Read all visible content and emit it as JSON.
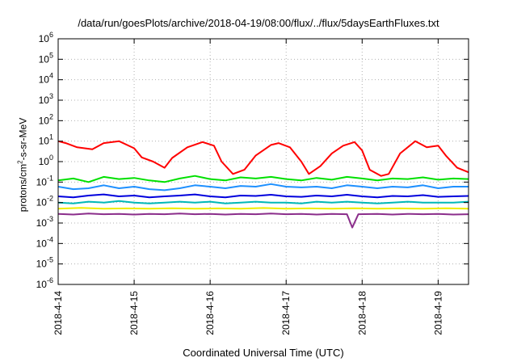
{
  "chart_data": {
    "type": "line",
    "title": "/data/run/goesPlots/archive/2018-04-19/08:00/flux/../flux/5daysEarthFluxes.txt",
    "xlabel": "Coordinated Universal Time (UTC)",
    "ylabel_parts": [
      "protons/cm",
      "2",
      "-s-sr-MeV"
    ],
    "yscale": "log",
    "ylim": [
      1e-06,
      1000000.0
    ],
    "ytick_exponents": [
      -6,
      -5,
      -4,
      -3,
      -2,
      -1,
      0,
      1,
      2,
      3,
      4,
      5,
      6
    ],
    "x_ticks": [
      "2018-4-14",
      "2018-4-15",
      "2018-4-16",
      "2018-4-17",
      "2018-4-18",
      "2018-4-19"
    ],
    "xlim_days": [
      0,
      5.4
    ],
    "grid": true,
    "series": [
      {
        "color": "#ff0000",
        "points": [
          [
            0,
            10
          ],
          [
            0.1,
            8
          ],
          [
            0.25,
            5
          ],
          [
            0.45,
            4
          ],
          [
            0.6,
            8
          ],
          [
            0.8,
            10
          ],
          [
            1,
            4.5
          ],
          [
            1.1,
            1.6
          ],
          [
            1.25,
            1
          ],
          [
            1.4,
            0.5
          ],
          [
            1.5,
            1.5
          ],
          [
            1.7,
            5
          ],
          [
            1.9,
            9
          ],
          [
            2.05,
            6
          ],
          [
            2.15,
            1
          ],
          [
            2.3,
            0.25
          ],
          [
            2.45,
            0.4
          ],
          [
            2.6,
            2
          ],
          [
            2.8,
            6.5
          ],
          [
            2.9,
            8
          ],
          [
            3.05,
            5
          ],
          [
            3.2,
            1
          ],
          [
            3.3,
            0.25
          ],
          [
            3.45,
            0.6
          ],
          [
            3.6,
            2.5
          ],
          [
            3.75,
            6
          ],
          [
            3.9,
            9
          ],
          [
            4.0,
            3.5
          ],
          [
            4.1,
            0.4
          ],
          [
            4.25,
            0.2
          ],
          [
            4.35,
            0.25
          ],
          [
            4.5,
            2.5
          ],
          [
            4.7,
            10
          ],
          [
            4.85,
            5
          ],
          [
            5.0,
            6
          ],
          [
            5.1,
            2
          ],
          [
            5.25,
            0.5
          ],
          [
            5.4,
            0.3
          ]
        ]
      },
      {
        "color": "#00e000",
        "points": [
          [
            0,
            0.12
          ],
          [
            0.2,
            0.15
          ],
          [
            0.4,
            0.1
          ],
          [
            0.6,
            0.18
          ],
          [
            0.8,
            0.14
          ],
          [
            1,
            0.16
          ],
          [
            1.2,
            0.12
          ],
          [
            1.4,
            0.1
          ],
          [
            1.6,
            0.15
          ],
          [
            1.8,
            0.2
          ],
          [
            2,
            0.14
          ],
          [
            2.2,
            0.12
          ],
          [
            2.4,
            0.17
          ],
          [
            2.6,
            0.15
          ],
          [
            2.8,
            0.18
          ],
          [
            3,
            0.14
          ],
          [
            3.2,
            0.12
          ],
          [
            3.4,
            0.16
          ],
          [
            3.6,
            0.13
          ],
          [
            3.8,
            0.18
          ],
          [
            4,
            0.15
          ],
          [
            4.2,
            0.12
          ],
          [
            4.4,
            0.15
          ],
          [
            4.6,
            0.14
          ],
          [
            4.8,
            0.17
          ],
          [
            5,
            0.13
          ],
          [
            5.2,
            0.15
          ],
          [
            5.4,
            0.14
          ]
        ]
      },
      {
        "color": "#1e90ff",
        "points": [
          [
            0,
            0.06
          ],
          [
            0.2,
            0.045
          ],
          [
            0.4,
            0.05
          ],
          [
            0.6,
            0.07
          ],
          [
            0.8,
            0.05
          ],
          [
            1,
            0.06
          ],
          [
            1.2,
            0.045
          ],
          [
            1.4,
            0.04
          ],
          [
            1.6,
            0.05
          ],
          [
            1.8,
            0.07
          ],
          [
            2,
            0.06
          ],
          [
            2.2,
            0.05
          ],
          [
            2.4,
            0.065
          ],
          [
            2.6,
            0.06
          ],
          [
            2.8,
            0.08
          ],
          [
            3,
            0.06
          ],
          [
            3.2,
            0.055
          ],
          [
            3.4,
            0.06
          ],
          [
            3.6,
            0.05
          ],
          [
            3.8,
            0.07
          ],
          [
            4,
            0.06
          ],
          [
            4.2,
            0.05
          ],
          [
            4.4,
            0.06
          ],
          [
            4.6,
            0.055
          ],
          [
            4.8,
            0.07
          ],
          [
            5,
            0.05
          ],
          [
            5.2,
            0.06
          ],
          [
            5.4,
            0.06
          ]
        ]
      },
      {
        "color": "#0000dd",
        "points": [
          [
            0,
            0.02
          ],
          [
            0.2,
            0.018
          ],
          [
            0.4,
            0.022
          ],
          [
            0.6,
            0.025
          ],
          [
            0.8,
            0.02
          ],
          [
            1,
            0.022
          ],
          [
            1.2,
            0.018
          ],
          [
            1.4,
            0.02
          ],
          [
            1.6,
            0.022
          ],
          [
            1.8,
            0.025
          ],
          [
            2,
            0.02
          ],
          [
            2.2,
            0.018
          ],
          [
            2.4,
            0.022
          ],
          [
            2.6,
            0.021
          ],
          [
            2.8,
            0.024
          ],
          [
            3,
            0.02
          ],
          [
            3.2,
            0.019
          ],
          [
            3.4,
            0.022
          ],
          [
            3.6,
            0.02
          ],
          [
            3.8,
            0.024
          ],
          [
            4,
            0.02
          ],
          [
            4.2,
            0.018
          ],
          [
            4.4,
            0.021
          ],
          [
            4.6,
            0.02
          ],
          [
            4.8,
            0.023
          ],
          [
            5,
            0.019
          ],
          [
            5.2,
            0.02
          ],
          [
            5.4,
            0.021
          ]
        ]
      },
      {
        "color": "#00b8b8",
        "points": [
          [
            0,
            0.01
          ],
          [
            0.2,
            0.009
          ],
          [
            0.4,
            0.011
          ],
          [
            0.6,
            0.01
          ],
          [
            0.8,
            0.012
          ],
          [
            1,
            0.01
          ],
          [
            1.2,
            0.009
          ],
          [
            1.4,
            0.01
          ],
          [
            1.6,
            0.011
          ],
          [
            1.8,
            0.01
          ],
          [
            2,
            0.011
          ],
          [
            2.2,
            0.009
          ],
          [
            2.4,
            0.01
          ],
          [
            2.6,
            0.011
          ],
          [
            2.8,
            0.01
          ],
          [
            3,
            0.01
          ],
          [
            3.2,
            0.009
          ],
          [
            3.4,
            0.011
          ],
          [
            3.6,
            0.01
          ],
          [
            3.8,
            0.011
          ],
          [
            4,
            0.01
          ],
          [
            4.2,
            0.009
          ],
          [
            4.4,
            0.01
          ],
          [
            4.6,
            0.011
          ],
          [
            4.8,
            0.01
          ],
          [
            5,
            0.01
          ],
          [
            5.2,
            0.01
          ],
          [
            5.4,
            0.011
          ]
        ]
      },
      {
        "color": "#eeee00",
        "points": [
          [
            0,
            0.005
          ],
          [
            0.3,
            0.0055
          ],
          [
            0.6,
            0.005
          ],
          [
            0.9,
            0.0052
          ],
          [
            1.2,
            0.005
          ],
          [
            1.5,
            0.0053
          ],
          [
            1.8,
            0.005
          ],
          [
            2.1,
            0.0052
          ],
          [
            2.4,
            0.005
          ],
          [
            2.7,
            0.0054
          ],
          [
            3,
            0.005
          ],
          [
            3.3,
            0.0052
          ],
          [
            3.6,
            0.005
          ],
          [
            3.9,
            0.0053
          ],
          [
            4.2,
            0.005
          ],
          [
            4.5,
            0.0052
          ],
          [
            4.8,
            0.005
          ],
          [
            5.1,
            0.0053
          ],
          [
            5.4,
            0.005
          ]
        ]
      },
      {
        "color": "#8b2e8b",
        "points": [
          [
            0,
            0.0028
          ],
          [
            0.2,
            0.0026
          ],
          [
            0.4,
            0.0029
          ],
          [
            0.6,
            0.0027
          ],
          [
            0.8,
            0.0028
          ],
          [
            1,
            0.0026
          ],
          [
            1.2,
            0.0028
          ],
          [
            1.4,
            0.0027
          ],
          [
            1.6,
            0.0029
          ],
          [
            1.8,
            0.0027
          ],
          [
            2,
            0.0028
          ],
          [
            2.2,
            0.0026
          ],
          [
            2.4,
            0.0028
          ],
          [
            2.6,
            0.0027
          ],
          [
            2.8,
            0.0029
          ],
          [
            3,
            0.0027
          ],
          [
            3.2,
            0.0028
          ],
          [
            3.4,
            0.0026
          ],
          [
            3.6,
            0.0028
          ],
          [
            3.8,
            0.0027
          ],
          [
            3.87,
            0.0006
          ],
          [
            3.95,
            0.0027
          ],
          [
            4.2,
            0.0028
          ],
          [
            4.4,
            0.0026
          ],
          [
            4.6,
            0.0028
          ],
          [
            4.8,
            0.0027
          ],
          [
            5,
            0.0028
          ],
          [
            5.2,
            0.0026
          ],
          [
            5.4,
            0.0027
          ]
        ]
      }
    ]
  }
}
